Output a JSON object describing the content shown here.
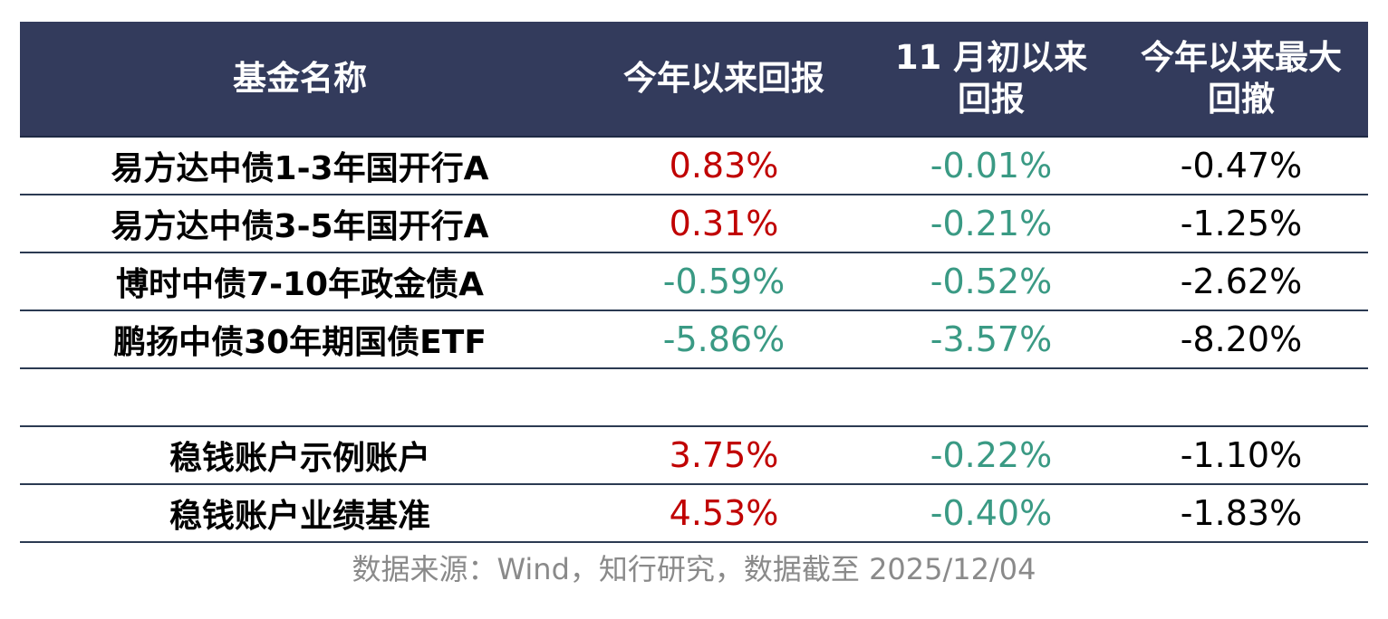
{
  "chart_data": {
    "type": "table",
    "columns": [
      "基金名称",
      "今年以来回报",
      "11 月初以来回报",
      "今年以来最大回撤"
    ],
    "rows": [
      {
        "name": "易方达中债1-3年国开行A",
        "ytd": "0.83%",
        "since_nov": "-0.01%",
        "max_dd": "-0.47%",
        "ytd_sign": "pos",
        "nov_sign": "neg"
      },
      {
        "name": "易方达中债3-5年国开行A",
        "ytd": "0.31%",
        "since_nov": "-0.21%",
        "max_dd": "-1.25%",
        "ytd_sign": "pos",
        "nov_sign": "neg"
      },
      {
        "name": "博时中债7-10年政金债A",
        "ytd": "-0.59%",
        "since_nov": "-0.52%",
        "max_dd": "-2.62%",
        "ytd_sign": "neg",
        "nov_sign": "neg"
      },
      {
        "name": "鹏扬中债30年期国债ETF",
        "ytd": "-5.86%",
        "since_nov": "-3.57%",
        "max_dd": "-8.20%",
        "ytd_sign": "neg",
        "nov_sign": "neg"
      },
      {
        "name": "稳钱账户示例账户",
        "ytd": "3.75%",
        "since_nov": "-0.22%",
        "max_dd": "-1.10%",
        "ytd_sign": "pos",
        "nov_sign": "neg"
      },
      {
        "name": "稳钱账户业绩基准",
        "ytd": "4.53%",
        "since_nov": "-0.40%",
        "max_dd": "-1.83%",
        "ytd_sign": "pos",
        "nov_sign": "neg"
      }
    ],
    "header": {
      "c1": "基金名称",
      "c2": "今年以来回报",
      "c3a": "11 月初以来",
      "c3b": "回报",
      "c4a": "今年以来最大",
      "c4b": "回撤"
    },
    "source": "数据来源：Wind，知行研究，数据截至 2025/12/04",
    "colors": {
      "header_bg": "#333b5c",
      "positive": "#c00000",
      "negative": "#3a9a84"
    }
  }
}
